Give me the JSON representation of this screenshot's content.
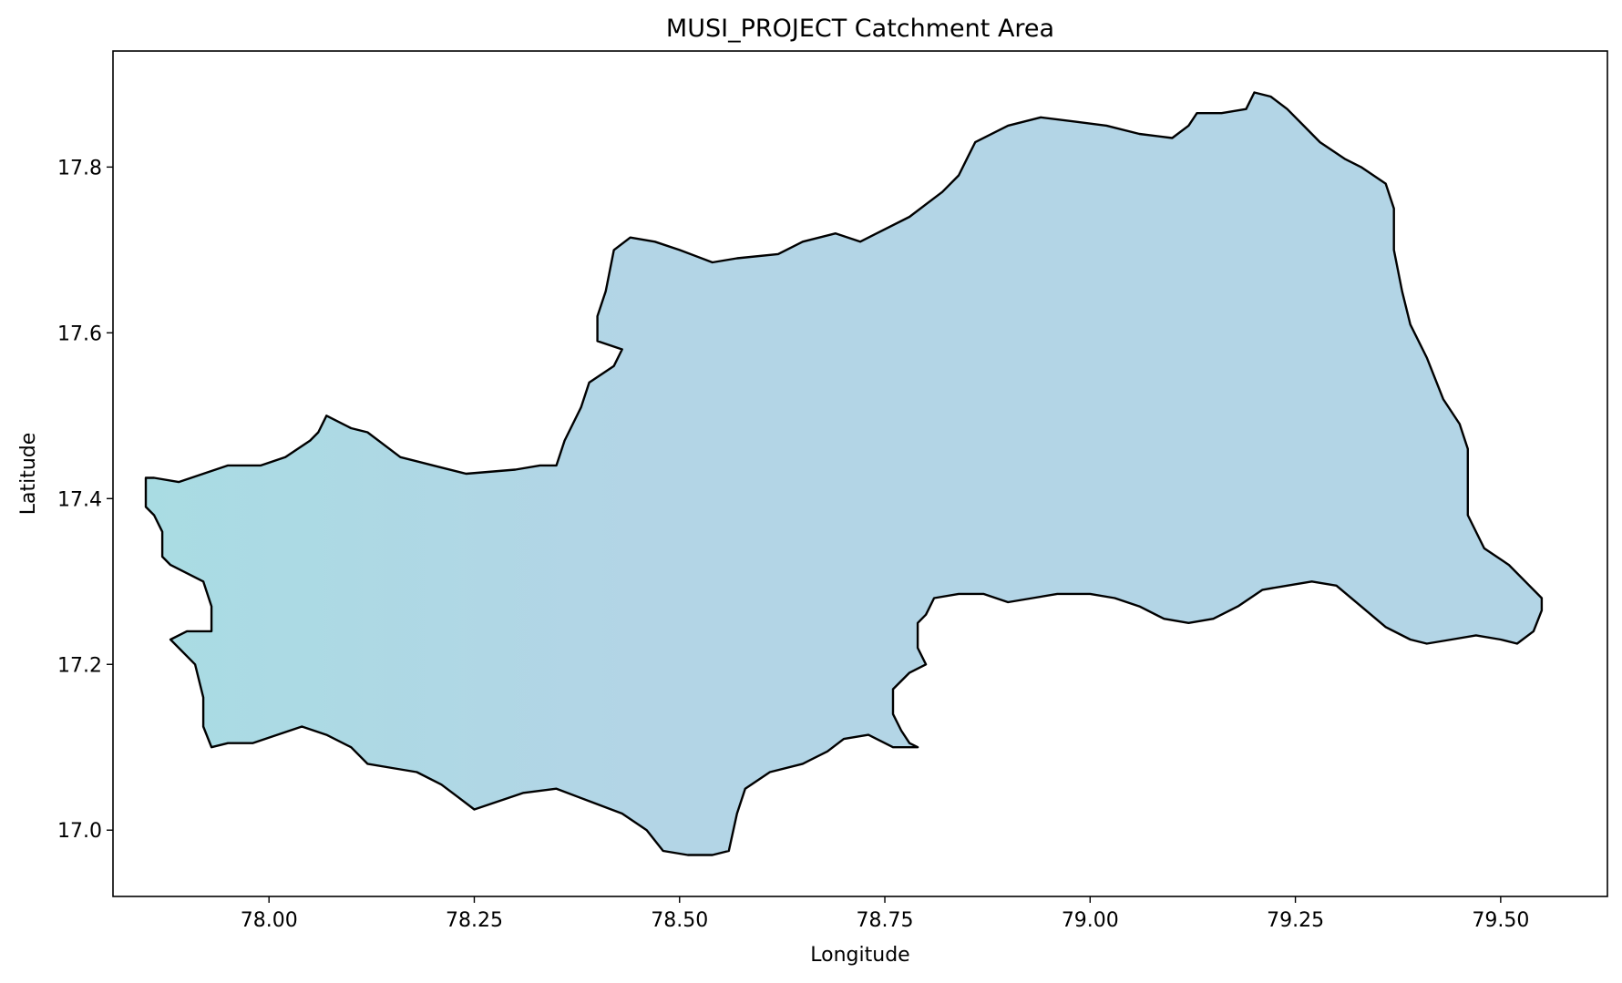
{
  "chart_data": {
    "type": "map",
    "title": "MUSI_PROJECT Catchment Area",
    "xlabel": "Longitude",
    "ylabel": "Latitude",
    "xlim": [
      77.81,
      79.63
    ],
    "ylim": [
      16.92,
      17.94
    ],
    "xticks": [
      78.0,
      78.25,
      78.5,
      78.75,
      79.0,
      79.25,
      79.5
    ],
    "xtick_labels": [
      "78.00",
      "78.25",
      "78.50",
      "78.75",
      "79.00",
      "79.25",
      "79.50"
    ],
    "yticks": [
      17.0,
      17.2,
      17.4,
      17.6,
      17.8
    ],
    "ytick_labels": [
      "17.0",
      "17.2",
      "17.4",
      "17.6",
      "17.8"
    ],
    "grid": false,
    "colors": {
      "fill": "#b3d5e6",
      "fill_left": "#a9dce3",
      "outline": "#000000"
    },
    "catchment_outline": [
      [
        77.85,
        17.425
      ],
      [
        77.86,
        17.425
      ],
      [
        77.89,
        17.42
      ],
      [
        77.92,
        17.43
      ],
      [
        77.95,
        17.44
      ],
      [
        77.99,
        17.44
      ],
      [
        78.02,
        17.45
      ],
      [
        78.05,
        17.47
      ],
      [
        78.06,
        17.48
      ],
      [
        78.07,
        17.5
      ],
      [
        78.1,
        17.485
      ],
      [
        78.12,
        17.48
      ],
      [
        78.14,
        17.465
      ],
      [
        78.16,
        17.45
      ],
      [
        78.2,
        17.44
      ],
      [
        78.24,
        17.43
      ],
      [
        78.3,
        17.435
      ],
      [
        78.33,
        17.44
      ],
      [
        78.35,
        17.44
      ],
      [
        78.36,
        17.47
      ],
      [
        78.38,
        17.51
      ],
      [
        78.39,
        17.54
      ],
      [
        78.42,
        17.56
      ],
      [
        78.43,
        17.58
      ],
      [
        78.4,
        17.59
      ],
      [
        78.4,
        17.62
      ],
      [
        78.41,
        17.65
      ],
      [
        78.42,
        17.7
      ],
      [
        78.44,
        17.715
      ],
      [
        78.47,
        17.71
      ],
      [
        78.5,
        17.7
      ],
      [
        78.54,
        17.685
      ],
      [
        78.57,
        17.69
      ],
      [
        78.62,
        17.695
      ],
      [
        78.65,
        17.71
      ],
      [
        78.69,
        17.72
      ],
      [
        78.72,
        17.71
      ],
      [
        78.74,
        17.72
      ],
      [
        78.78,
        17.74
      ],
      [
        78.82,
        17.77
      ],
      [
        78.84,
        17.79
      ],
      [
        78.85,
        17.81
      ],
      [
        78.86,
        17.83
      ],
      [
        78.9,
        17.85
      ],
      [
        78.94,
        17.86
      ],
      [
        78.98,
        17.855
      ],
      [
        79.02,
        17.85
      ],
      [
        79.06,
        17.84
      ],
      [
        79.1,
        17.835
      ],
      [
        79.12,
        17.85
      ],
      [
        79.13,
        17.865
      ],
      [
        79.16,
        17.865
      ],
      [
        79.19,
        17.87
      ],
      [
        79.2,
        17.89
      ],
      [
        79.22,
        17.885
      ],
      [
        79.24,
        17.87
      ],
      [
        79.26,
        17.85
      ],
      [
        79.28,
        17.83
      ],
      [
        79.31,
        17.81
      ],
      [
        79.33,
        17.8
      ],
      [
        79.36,
        17.78
      ],
      [
        79.37,
        17.75
      ],
      [
        79.37,
        17.7
      ],
      [
        79.38,
        17.65
      ],
      [
        79.39,
        17.61
      ],
      [
        79.41,
        17.57
      ],
      [
        79.43,
        17.52
      ],
      [
        79.45,
        17.49
      ],
      [
        79.46,
        17.46
      ],
      [
        79.46,
        17.42
      ],
      [
        79.46,
        17.38
      ],
      [
        79.48,
        17.34
      ],
      [
        79.51,
        17.32
      ],
      [
        79.53,
        17.3
      ],
      [
        79.55,
        17.28
      ],
      [
        79.55,
        17.265
      ],
      [
        79.54,
        17.24
      ],
      [
        79.52,
        17.225
      ],
      [
        79.5,
        17.23
      ],
      [
        79.47,
        17.235
      ],
      [
        79.44,
        17.23
      ],
      [
        79.41,
        17.225
      ],
      [
        79.39,
        17.23
      ],
      [
        79.36,
        17.245
      ],
      [
        79.33,
        17.27
      ],
      [
        79.3,
        17.295
      ],
      [
        79.27,
        17.3
      ],
      [
        79.24,
        17.295
      ],
      [
        79.21,
        17.29
      ],
      [
        79.18,
        17.27
      ],
      [
        79.15,
        17.255
      ],
      [
        79.12,
        17.25
      ],
      [
        79.09,
        17.255
      ],
      [
        79.06,
        17.27
      ],
      [
        79.03,
        17.28
      ],
      [
        79.0,
        17.285
      ],
      [
        78.96,
        17.285
      ],
      [
        78.93,
        17.28
      ],
      [
        78.9,
        17.275
      ],
      [
        78.87,
        17.285
      ],
      [
        78.84,
        17.285
      ],
      [
        78.81,
        17.28
      ],
      [
        78.8,
        17.26
      ],
      [
        78.79,
        17.25
      ],
      [
        78.79,
        17.22
      ],
      [
        78.8,
        17.2
      ],
      [
        78.78,
        17.19
      ],
      [
        78.76,
        17.17
      ],
      [
        78.76,
        17.14
      ],
      [
        78.77,
        17.12
      ],
      [
        78.78,
        17.105
      ],
      [
        78.79,
        17.1
      ],
      [
        78.76,
        17.1
      ],
      [
        78.73,
        17.115
      ],
      [
        78.7,
        17.11
      ],
      [
        78.68,
        17.095
      ],
      [
        78.65,
        17.08
      ],
      [
        78.61,
        17.07
      ],
      [
        78.58,
        17.05
      ],
      [
        78.57,
        17.02
      ],
      [
        78.56,
        16.975
      ],
      [
        78.54,
        16.97
      ],
      [
        78.51,
        16.97
      ],
      [
        78.48,
        16.975
      ],
      [
        78.46,
        17.0
      ],
      [
        78.43,
        17.02
      ],
      [
        78.39,
        17.035
      ],
      [
        78.35,
        17.05
      ],
      [
        78.31,
        17.045
      ],
      [
        78.28,
        17.035
      ],
      [
        78.25,
        17.025
      ],
      [
        78.23,
        17.04
      ],
      [
        78.21,
        17.055
      ],
      [
        78.18,
        17.07
      ],
      [
        78.15,
        17.075
      ],
      [
        78.12,
        17.08
      ],
      [
        78.1,
        17.1
      ],
      [
        78.07,
        17.115
      ],
      [
        78.04,
        17.125
      ],
      [
        78.01,
        17.115
      ],
      [
        77.98,
        17.105
      ],
      [
        77.95,
        17.105
      ],
      [
        77.93,
        17.1
      ],
      [
        77.92,
        17.125
      ],
      [
        77.92,
        17.16
      ],
      [
        77.91,
        17.2
      ],
      [
        77.88,
        17.23
      ],
      [
        77.9,
        17.24
      ],
      [
        77.93,
        17.24
      ],
      [
        77.93,
        17.27
      ],
      [
        77.92,
        17.3
      ],
      [
        77.9,
        17.31
      ],
      [
        77.88,
        17.32
      ],
      [
        77.87,
        17.33
      ],
      [
        77.87,
        17.36
      ],
      [
        77.86,
        17.38
      ],
      [
        77.85,
        17.39
      ],
      [
        77.85,
        17.425
      ]
    ]
  }
}
